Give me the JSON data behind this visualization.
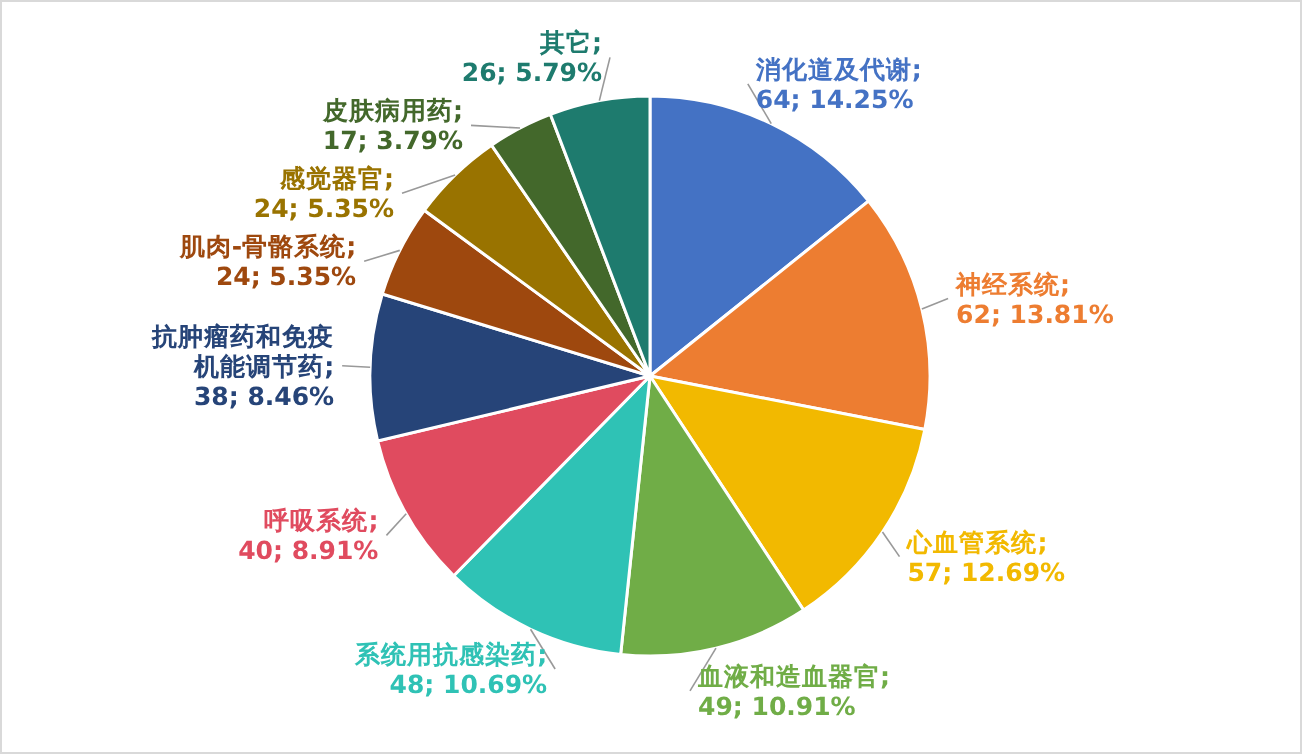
{
  "chart_data": {
    "type": "pie",
    "categories": [
      "消化道及代谢",
      "神经系统",
      "心血管系统",
      "血液和造血器官",
      "系统用抗感染药",
      "呼吸系统",
      "抗肿瘤药和免疫机能调节药",
      "肌肉-骨骼系统",
      "感觉器官",
      "皮肤病用药",
      "其它"
    ],
    "values": [
      64,
      62,
      57,
      49,
      48,
      40,
      38,
      24,
      24,
      17,
      26
    ],
    "value_labels": [
      "; 64; 14.25%",
      "; 62; 13.81%",
      "; 57; 12.69%",
      "; 49; 10.91%",
      "; 48; 10.69%",
      "; 40; 8.91%",
      "; 38; 8.46%",
      "; 24; 5.35%",
      "; 24; 5.35%",
      "; 17; 3.79%",
      "; 26; 5.79%"
    ],
    "colors": [
      "#4472c4",
      "#ed7d31",
      "#f2b900",
      "#70ad47",
      "#2fc2b5",
      "#e04b5f",
      "#264478",
      "#9e480e",
      "#997300",
      "#43682b",
      "#1e7b6e"
    ]
  }
}
